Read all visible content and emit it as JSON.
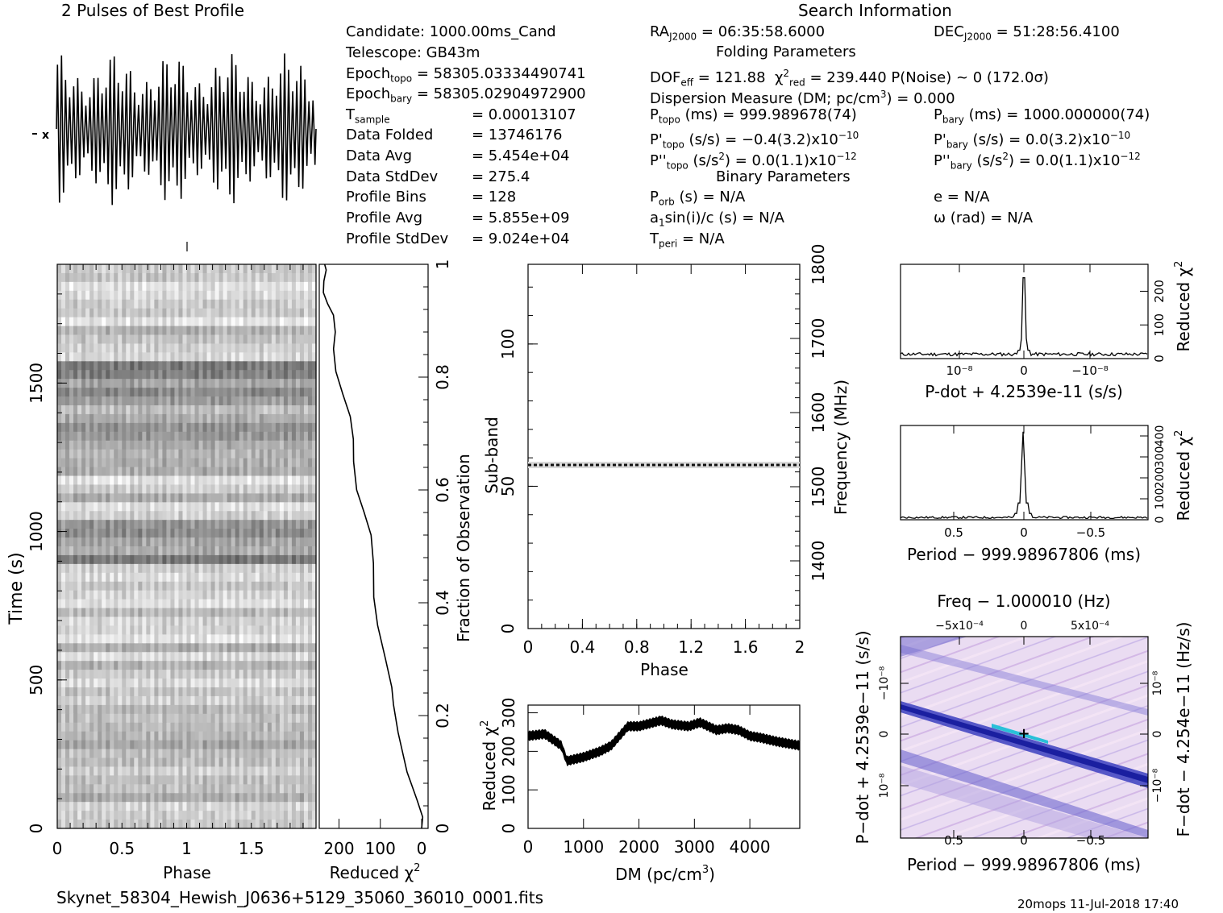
{
  "header": {
    "profile_title": "2 Pulses of Best Profile",
    "search_title": "Search Information",
    "folding_title": "Folding Parameters",
    "binary_title": "Binary Parameters",
    "filename": "Skynet_58304_Hewish_J0636+5129_35060_36010_0001.fits",
    "footer_right": "20mops 11-Jul-2018 17:40"
  },
  "info": {
    "candidate": "Candidate:  1000.00ms_Cand",
    "telescope": "Telescope:  GB43m",
    "epoch_topo_value": " = 58305.0333449074​1",
    "epoch_bary_value": " = 58305.02904972900",
    "tsample_value": "=  0.00013107",
    "data_folded_label": "Data Folded",
    "data_folded_value": "=  13746176",
    "data_avg_label": "Data Avg",
    "data_avg_value": "=  5.454e+04",
    "data_std_label": "Data StdDev",
    "data_std_value": "=  275.4",
    "prof_bins_label": "Profile Bins",
    "prof_bins_value": "=  128",
    "prof_avg_label": "Profile Avg",
    "prof_avg_value": "=  5.855e+09",
    "prof_std_label": "Profile StdDev",
    "prof_std_value": "=  9.024e+04",
    "ra_value": " = 06:35:58.6000",
    "dec_value": " = 51:28:56.4100",
    "dof_value": " = 121.88",
    "chi_value": " = 239.440   P(Noise) ~ 0    (172.0σ)",
    "dm_line": "Dispersion Measure (DM; pc/cm",
    "dm_tail": ") = 0.000",
    "ptopo_value": " (ms) =  999.989678(74)",
    "pbary_value": " (ms) =  1000.000000(74)",
    "pdtopo_value": " (s/s) = −0.4(3.2)x10",
    "pdtopo_exp": "−10",
    "pdbary_value": " (s/s) = 0.0(3.2)x10",
    "pdbary_exp": "−10",
    "pddtopo_value": " (s/s",
    "pddtopo_tail": ") = 0.0(1.1)x10",
    "pddtopo_exp": "−12",
    "pddbary_value": " (s/s",
    "pddbary_tail": ") = 0.0(1.1)x10",
    "pddbary_exp": "−12",
    "porb_value": " (s) = N/A",
    "e_value": "e = N/A",
    "a1_value": "sin(i)/c (s) = N/A",
    "omega_value": "ω (rad) = N/A",
    "tperi_value": " = N/A"
  },
  "axes": {
    "time_ylabel": "Time (s)",
    "phase_xlabel": "Phase",
    "redchi_xlabel": "Reduced χ",
    "frac_ylabel": "Fraction of Observation",
    "subband_ylabel": "Sub-band",
    "freq_ylabel": "Frequency (MHz)",
    "phase2_xlabel": "Phase",
    "dm_xlabel": "DM (pc/cm",
    "dm_ylabel": "Reduced χ",
    "pdot_xlabel": "P-dot + 4.2539e-11 (s/s)",
    "pdot_ylabel": "Reduced χ",
    "period_xlabel": "Period − 999.98967806 (ms)",
    "period_ylabel": "Reduced χ",
    "freq_top_label": "Freq − 1.000010 (Hz)",
    "pp_xlabel": "Period − 999.98967806 (ms)",
    "pp_ylabel": "P−dot + 4.2539e−11 (s/s)",
    "ff_ylabel": "F−dot − 4.254e−11 (Hz/s)"
  },
  "chart_data": [
    {
      "type": "line",
      "title": "2 Pulses of Best Profile",
      "xlabel": "",
      "ylabel": "",
      "x_range": [
        0,
        2
      ],
      "description_note": "",
      "pulses_visible": 2
    },
    {
      "type": "heatmap",
      "title": "",
      "xlabel": "Phase",
      "ylabel": "Time (s)",
      "x_ticks": [
        "0",
        "0.5",
        "1",
        "1.5"
      ],
      "y_ticks": [
        "0",
        "500",
        "1000",
        "1500"
      ],
      "xlim": [
        0,
        2
      ],
      "ylim": [
        0,
        1900
      ]
    },
    {
      "type": "line",
      "xlabel": "Reduced χ²",
      "ylabel": "Fraction of Observation",
      "x_ticks": [
        "200",
        "100",
        "0"
      ],
      "y_ticks": [
        "0",
        "0.2",
        "0.4",
        "0.6",
        "0.8",
        "1"
      ],
      "x": [
        0,
        5,
        15,
        30,
        50,
        70,
        80,
        90,
        100,
        110,
        120,
        130,
        140,
        150,
        160,
        170,
        180,
        190,
        200,
        210,
        215,
        220,
        225,
        230,
        235,
        238,
        240
      ],
      "y": [
        0.0,
        0.02,
        0.05,
        0.1,
        0.17,
        0.22,
        0.25,
        0.3,
        0.36,
        0.41,
        0.47,
        0.52,
        0.56,
        0.6,
        0.65,
        0.69,
        0.73,
        0.77,
        0.81,
        0.85,
        0.88,
        0.91,
        0.93,
        0.95,
        0.97,
        0.99,
        1.0
      ]
    },
    {
      "type": "heatmap",
      "xlabel": "Phase",
      "ylabel": "Sub-band",
      "x_ticks": [
        "0",
        "0.4",
        "0.8",
        "1.2",
        "1.6",
        "2"
      ],
      "y_ticks": [
        "0",
        "50",
        "100"
      ],
      "right_ticks": [
        "1400",
        "1500",
        "1600",
        "1700",
        "1800"
      ],
      "xlim": [
        0,
        2
      ],
      "ylim": [
        0,
        128
      ],
      "highlighted_subband": 58
    },
    {
      "type": "line",
      "xlabel": "DM (pc/cm³)",
      "ylabel": "Reduced χ²",
      "x_ticks": [
        "0",
        "1000",
        "2000",
        "3000",
        "4000"
      ],
      "y_ticks": [
        "0",
        "100",
        "200",
        "300"
      ],
      "xlim": [
        0,
        4900
      ],
      "ylim": [
        0,
        320
      ],
      "x": [
        0,
        300,
        600,
        700,
        1000,
        1300,
        1500,
        1800,
        2000,
        2400,
        2600,
        2900,
        3100,
        3400,
        3600,
        3800,
        4000,
        4200,
        4500,
        4900
      ],
      "y": [
        240,
        245,
        215,
        175,
        185,
        200,
        215,
        265,
        265,
        280,
        270,
        265,
        275,
        255,
        260,
        255,
        240,
        235,
        225,
        215
      ]
    },
    {
      "type": "line",
      "xlabel": "P-dot + 4.2539e-11 (s/s)",
      "ylabel": "Reduced χ²",
      "x_ticks": [
        "10⁻⁸",
        "0",
        "−10⁻⁸"
      ],
      "y_ticks": [
        "0",
        "100",
        "200"
      ],
      "ylim": [
        0,
        280
      ],
      "peak_at": 0,
      "peak_value": 240
    },
    {
      "type": "line",
      "xlabel": "Period − 999.98967806 (ms)",
      "ylabel": "Reduced χ²",
      "x_ticks": [
        "0.5",
        "0",
        "−0.5"
      ],
      "y_ticks": [
        "0",
        "100",
        "200",
        "300",
        "400"
      ],
      "ylim": [
        0,
        450
      ],
      "peak_at": 0,
      "peak_value": 420
    },
    {
      "type": "heatmap",
      "xlabel": "Period − 999.98967806 (ms)",
      "ylabel": "P−dot + 4.2539e−11 (s/s)",
      "top_label": "Freq − 1.000010 (Hz)",
      "right_label": "F−dot − 4.254e−11 (Hz/s)",
      "x_ticks": [
        "0.5",
        "0",
        "−0.5"
      ],
      "top_ticks": [
        "−5x10⁻⁴",
        "0",
        "5x10⁻⁴"
      ],
      "y_ticks": [
        "−10⁻⁸",
        "0",
        "10⁻⁸"
      ],
      "right_ticks": [
        "10⁻⁸",
        "0",
        "−10⁻⁸"
      ]
    }
  ]
}
